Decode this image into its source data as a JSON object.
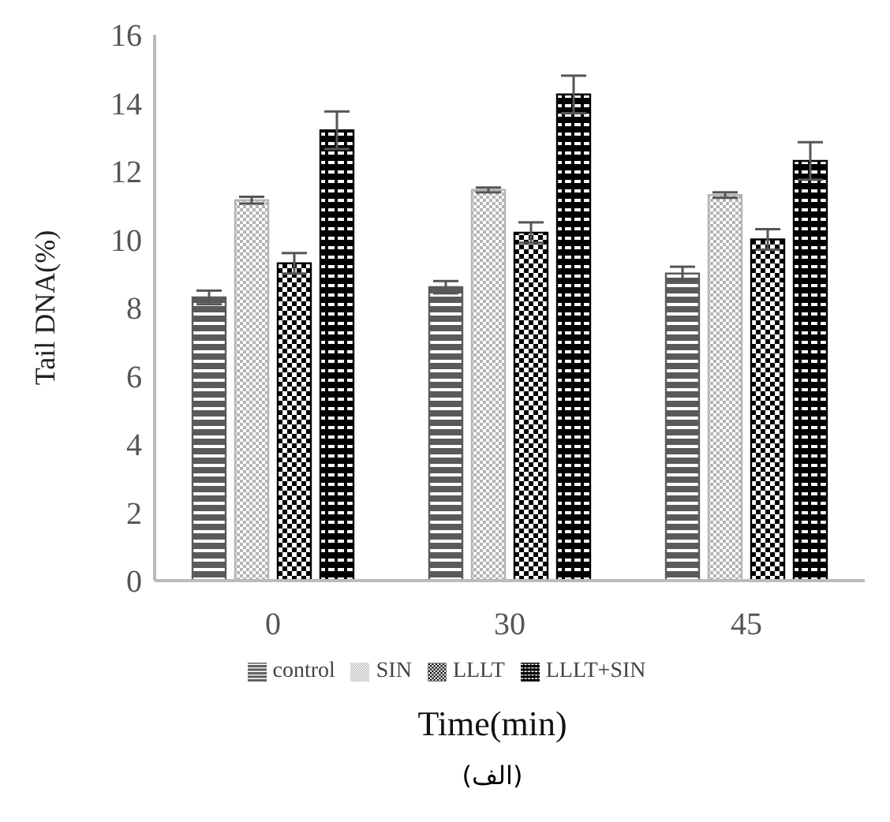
{
  "chart_data": {
    "type": "bar",
    "ylabel": "Tail DNA(%)",
    "xlabel": "Time(min)",
    "annotations": [
      "(الف)"
    ],
    "categories": [
      "0",
      "30",
      "45"
    ],
    "series": [
      {
        "name": "control",
        "color": "#5a5a5a",
        "values": [
          8.3,
          8.6,
          9.0
        ],
        "errors": [
          0.2,
          0.18,
          0.2
        ]
      },
      {
        "name": "SIN",
        "color": "#b4b4b4",
        "values": [
          11.15,
          11.45,
          11.3
        ],
        "errors": [
          0.1,
          0.07,
          0.08
        ]
      },
      {
        "name": "LLLT",
        "color": "#000000",
        "values": [
          9.3,
          10.2,
          10.0
        ],
        "errors": [
          0.3,
          0.3,
          0.3
        ]
      },
      {
        "name": "LLLT+SIN",
        "color": "#000000",
        "values": [
          13.2,
          14.25,
          12.3
        ],
        "errors": [
          0.55,
          0.55,
          0.55
        ]
      }
    ],
    "ylim": [
      0,
      16
    ],
    "yticks": [
      0,
      2,
      4,
      6,
      8,
      10,
      12,
      14,
      16
    ],
    "grid": false,
    "legend": "bottom"
  }
}
